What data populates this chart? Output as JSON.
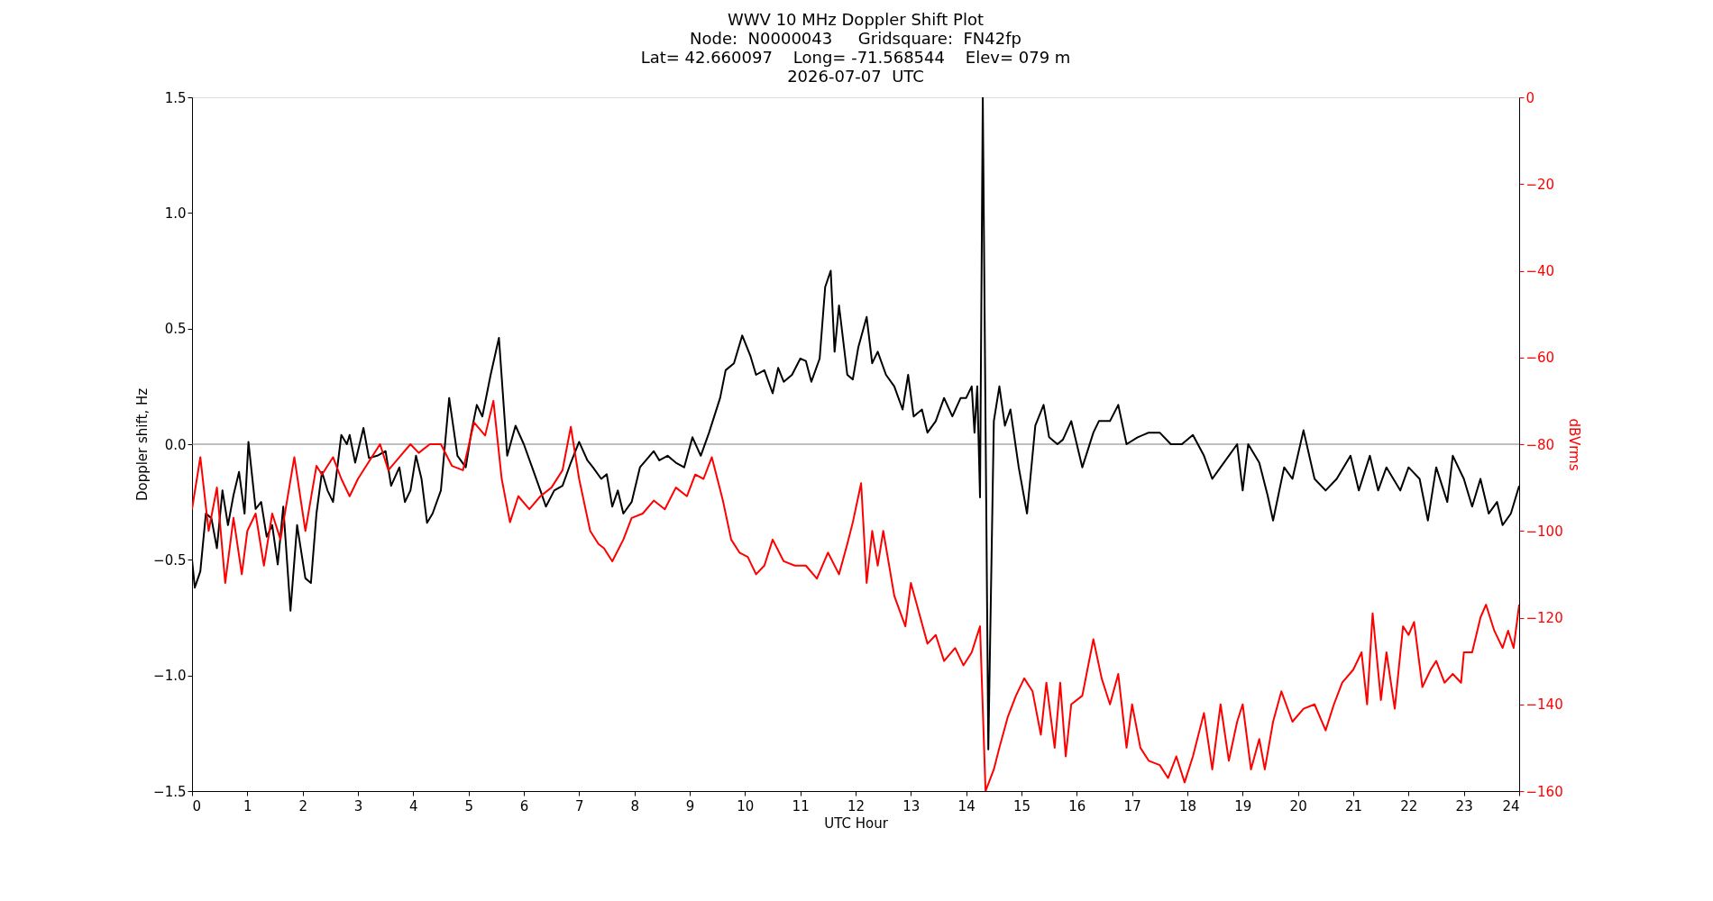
{
  "chart_data": {
    "type": "line",
    "title": "WWV 10 MHz Doppler Shift Plot\nNode:  N0000043     Gridsquare:  FN42fp\nLat= 42.660097    Long= -71.568544    Elev= 079 m\n2026-07-07  UTC",
    "xlabel": "UTC Hour",
    "ylabel": "Doppler shift, Hz",
    "y2label": "dBVrms",
    "xlim": [
      0,
      24
    ],
    "xticks": [
      0,
      1,
      2,
      3,
      4,
      5,
      6,
      7,
      8,
      9,
      10,
      11,
      12,
      13,
      14,
      15,
      16,
      17,
      18,
      19,
      20,
      21,
      22,
      23,
      24
    ],
    "ylim": [
      -1.5,
      1.5
    ],
    "yticks": [
      {
        "value": -1.5,
        "label": "−1.5"
      },
      {
        "value": -1.0,
        "label": "−1.0"
      },
      {
        "value": -0.5,
        "label": "−0.5"
      },
      {
        "value": 0,
        "label": "0.0"
      },
      {
        "value": 0.5,
        "label": "0.5"
      },
      {
        "value": 1.0,
        "label": "1.0"
      },
      {
        "value": 1.5,
        "label": "1.5"
      }
    ],
    "y2lim": [
      -160,
      0
    ],
    "y2ticks": [
      {
        "value": -160,
        "label": "−160"
      },
      {
        "value": -140,
        "label": "−140"
      },
      {
        "value": -120,
        "label": "−120"
      },
      {
        "value": -100,
        "label": "−100"
      },
      {
        "value": -80,
        "label": "−80"
      },
      {
        "value": -60,
        "label": "−60"
      },
      {
        "value": -40,
        "label": "−40"
      },
      {
        "value": -20,
        "label": "−20"
      },
      0
    ],
    "grid": false,
    "ref_lines": [
      {
        "axis": "y",
        "value": 0,
        "color": "#808080"
      }
    ],
    "series": [
      {
        "color": "#000000",
        "x": [
          0,
          0.05,
          0.15,
          0.25,
          0.35,
          0.45,
          0.55,
          0.65,
          0.75,
          0.85,
          0.95,
          1.02,
          1.15,
          1.25,
          1.35,
          1.45,
          1.55,
          1.65,
          1.78,
          1.9,
          2.05,
          2.15,
          2.25,
          2.35,
          2.45,
          2.55,
          2.7,
          2.8,
          2.85,
          2.95,
          3.1,
          3.2,
          3.35,
          3.5,
          3.6,
          3.75,
          3.85,
          3.95,
          4.05,
          4.15,
          4.25,
          4.35,
          4.5,
          4.65,
          4.8,
          4.95,
          5.05,
          5.15,
          5.25,
          5.4,
          5.55,
          5.7,
          5.85,
          6.0,
          6.15,
          6.3,
          6.4,
          6.55,
          6.7,
          6.85,
          7.0,
          7.15,
          7.25,
          7.4,
          7.5,
          7.6,
          7.7,
          7.8,
          7.95,
          8.1,
          8.35,
          8.45,
          8.6,
          8.75,
          8.9,
          9.05,
          9.2,
          9.35,
          9.55,
          9.65,
          9.8,
          9.95,
          10.1,
          10.2,
          10.35,
          10.5,
          10.6,
          10.7,
          10.85,
          11.0,
          11.1,
          11.2,
          11.35,
          11.45,
          11.55,
          11.62,
          11.7,
          11.85,
          11.95,
          12.05,
          12.2,
          12.3,
          12.4,
          12.55,
          12.7,
          12.85,
          12.95,
          13.05,
          13.2,
          13.3,
          13.45,
          13.6,
          13.75,
          13.9,
          14.0,
          14.1,
          14.15,
          14.2,
          14.25,
          14.3,
          14.4,
          14.5,
          14.6,
          14.7,
          14.8,
          14.95,
          15.1,
          15.25,
          15.4,
          15.5,
          15.65,
          15.75,
          15.9,
          16.1,
          16.3,
          16.4,
          16.6,
          16.75,
          16.9,
          17.1,
          17.3,
          17.5,
          17.7,
          17.9,
          18.1,
          18.3,
          18.45,
          18.6,
          18.75,
          18.9,
          19.0,
          19.1,
          19.3,
          19.45,
          19.55,
          19.75,
          19.9,
          20.1,
          20.3,
          20.5,
          20.7,
          20.95,
          21.1,
          21.3,
          21.45,
          21.6,
          21.85,
          22.0,
          22.2,
          22.35,
          22.5,
          22.7,
          22.8,
          23.0,
          23.15,
          23.3,
          23.45,
          23.6,
          23.7,
          23.85,
          24.0
        ],
        "values": [
          -0.5,
          -0.62,
          -0.55,
          -0.3,
          -0.32,
          -0.45,
          -0.2,
          -0.35,
          -0.22,
          -0.12,
          -0.3,
          0.01,
          -0.28,
          -0.25,
          -0.4,
          -0.35,
          -0.52,
          -0.27,
          -0.72,
          -0.35,
          -0.58,
          -0.6,
          -0.3,
          -0.12,
          -0.2,
          -0.25,
          0.04,
          0.0,
          0.04,
          -0.08,
          0.07,
          -0.06,
          -0.05,
          -0.03,
          -0.18,
          -0.1,
          -0.25,
          -0.2,
          -0.05,
          -0.15,
          -0.34,
          -0.3,
          -0.2,
          0.2,
          -0.05,
          -0.1,
          0.05,
          0.17,
          0.12,
          0.3,
          0.46,
          -0.05,
          0.08,
          0.0,
          -0.1,
          -0.2,
          -0.27,
          -0.2,
          -0.18,
          -0.08,
          0.01,
          -0.07,
          -0.1,
          -0.15,
          -0.13,
          -0.27,
          -0.2,
          -0.3,
          -0.25,
          -0.1,
          -0.03,
          -0.07,
          -0.05,
          -0.08,
          -0.1,
          0.03,
          -0.05,
          0.05,
          0.2,
          0.32,
          0.35,
          0.47,
          0.38,
          0.3,
          0.32,
          0.22,
          0.33,
          0.27,
          0.3,
          0.37,
          0.36,
          0.27,
          0.37,
          0.68,
          0.75,
          0.4,
          0.6,
          0.3,
          0.28,
          0.42,
          0.55,
          0.35,
          0.4,
          0.3,
          0.25,
          0.15,
          0.3,
          0.12,
          0.15,
          0.05,
          0.1,
          0.2,
          0.12,
          0.2,
          0.2,
          0.25,
          0.05,
          0.25,
          -0.23,
          1.5,
          -1.32,
          0.1,
          0.25,
          0.08,
          0.15,
          -0.1,
          -0.3,
          0.08,
          0.17,
          0.03,
          0.0,
          0.02,
          0.1,
          -0.1,
          0.05,
          0.1,
          0.1,
          0.17,
          0.0,
          0.03,
          0.05,
          0.05,
          0.0,
          0.0,
          0.04,
          -0.05,
          -0.15,
          -0.1,
          -0.05,
          0.0,
          -0.2,
          0.0,
          -0.08,
          -0.22,
          -0.33,
          -0.1,
          -0.15,
          0.06,
          -0.15,
          -0.2,
          -0.15,
          -0.05,
          -0.2,
          -0.05,
          -0.2,
          -0.1,
          -0.2,
          -0.1,
          -0.15,
          -0.33,
          -0.1,
          -0.25,
          -0.05,
          -0.15,
          -0.27,
          -0.15,
          -0.3,
          -0.25,
          -0.35,
          -0.3,
          -0.18
        ]
      },
      {
        "color": "#ff0000",
        "axis": "y2",
        "x": [
          0,
          0.15,
          0.3,
          0.45,
          0.6,
          0.75,
          0.9,
          1.0,
          1.15,
          1.3,
          1.45,
          1.6,
          1.85,
          2.05,
          2.25,
          2.35,
          2.55,
          2.7,
          2.85,
          3.0,
          3.2,
          3.4,
          3.55,
          3.75,
          3.95,
          4.1,
          4.3,
          4.5,
          4.7,
          4.9,
          5.1,
          5.3,
          5.45,
          5.6,
          5.75,
          5.9,
          6.1,
          6.3,
          6.5,
          6.7,
          6.85,
          7.0,
          7.2,
          7.35,
          7.45,
          7.6,
          7.8,
          7.95,
          8.15,
          8.35,
          8.55,
          8.75,
          8.95,
          9.1,
          9.25,
          9.4,
          9.6,
          9.75,
          9.9,
          10.05,
          10.2,
          10.35,
          10.5,
          10.7,
          10.9,
          11.1,
          11.3,
          11.5,
          11.7,
          11.85,
          11.95,
          12.1,
          12.2,
          12.3,
          12.4,
          12.5,
          12.7,
          12.9,
          13.0,
          13.15,
          13.3,
          13.45,
          13.6,
          13.8,
          13.95,
          14.1,
          14.25,
          14.35,
          14.5,
          14.6,
          14.75,
          14.9,
          15.05,
          15.2,
          15.35,
          15.45,
          15.6,
          15.7,
          15.8,
          15.9,
          16.1,
          16.3,
          16.45,
          16.6,
          16.75,
          16.9,
          17.0,
          17.15,
          17.3,
          17.5,
          17.65,
          17.8,
          17.95,
          18.1,
          18.3,
          18.45,
          18.6,
          18.75,
          18.9,
          19.0,
          19.15,
          19.3,
          19.4,
          19.55,
          19.7,
          19.9,
          20.1,
          20.3,
          20.5,
          20.65,
          20.8,
          21.0,
          21.15,
          21.25,
          21.35,
          21.5,
          21.6,
          21.75,
          21.9,
          22.0,
          22.1,
          22.25,
          22.4,
          22.5,
          22.65,
          22.8,
          22.95,
          23.0,
          23.15,
          23.3,
          23.4,
          23.55,
          23.7,
          23.8,
          23.9,
          24.0
        ],
        "values": [
          -95,
          -83,
          -100,
          -90,
          -112,
          -97,
          -110,
          -100,
          -96,
          -108,
          -96,
          -102,
          -83,
          -100,
          -85,
          -87,
          -83,
          -88,
          -92,
          -88,
          -84,
          -80,
          -86,
          -83,
          -80,
          -82,
          -80,
          -80,
          -85,
          -86,
          -75,
          -78,
          -70,
          -88,
          -98,
          -92,
          -95,
          -92,
          -90,
          -86,
          -76,
          -88,
          -100,
          -103,
          -104,
          -107,
          -102,
          -97,
          -96,
          -93,
          -95,
          -90,
          -92,
          -87,
          -88,
          -83,
          -93,
          -102,
          -105,
          -106,
          -110,
          -108,
          -102,
          -107,
          -108,
          -108,
          -111,
          -105,
          -110,
          -103,
          -98,
          -89,
          -112,
          -100,
          -108,
          -100,
          -115,
          -122,
          -112,
          -119,
          -126,
          -124,
          -130,
          -127,
          -131,
          -128,
          -122,
          -160,
          -155,
          -150,
          -143,
          -138,
          -134,
          -137,
          -147,
          -135,
          -150,
          -135,
          -152,
          -140,
          -138,
          -125,
          -134,
          -140,
          -133,
          -150,
          -140,
          -150,
          -153,
          -154,
          -157,
          -152,
          -158,
          -152,
          -142,
          -155,
          -140,
          -153,
          -144,
          -140,
          -155,
          -148,
          -155,
          -144,
          -137,
          -144,
          -141,
          -140,
          -146,
          -140,
          -135,
          -132,
          -128,
          -140,
          -119,
          -139,
          -128,
          -141,
          -122,
          -124,
          -121,
          -136,
          -132,
          -130,
          -135,
          -133,
          -135,
          -128,
          -128,
          -120,
          -117,
          -123,
          -127,
          -123,
          -127,
          -117
        ]
      }
    ]
  }
}
